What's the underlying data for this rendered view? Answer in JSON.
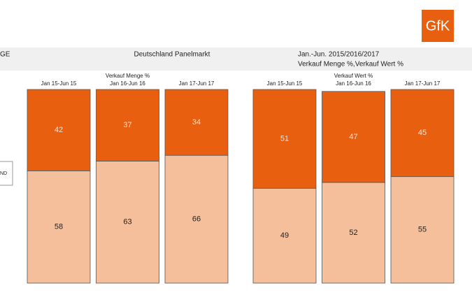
{
  "header": {
    "left_label": "GE",
    "market": "Deutschland Panelmarkt",
    "period": "Jan.-Jun. 2015/2016/2017",
    "measures": "Verkauf Menge %,Verkauf Wert %",
    "logo": "GfK",
    "legend_fragment": "ND"
  },
  "chart_data": [
    {
      "type": "stacked_bar",
      "title": "Verkauf Menge %",
      "categories": [
        "Jan 15-Jun 15",
        "Jan 16-Jun 16",
        "Jan 17-Jun 17"
      ],
      "ylim": [
        0,
        100
      ],
      "series": [
        {
          "color": "#f6bf9b",
          "values": [
            58,
            63,
            66
          ]
        },
        {
          "color": "#e8600f",
          "values": [
            42,
            37,
            34
          ]
        }
      ]
    },
    {
      "type": "stacked_bar",
      "title": "Verkauf Wert %",
      "categories": [
        "Jan 15-Jun 15",
        "Jan 16-Jun 16",
        "Jan 17-Jun 17"
      ],
      "ylim": [
        0,
        100
      ],
      "series": [
        {
          "color": "#f6bf9b",
          "values": [
            49,
            52,
            55
          ]
        },
        {
          "color": "#e8600f",
          "values": [
            51,
            47,
            45
          ]
        }
      ]
    }
  ]
}
